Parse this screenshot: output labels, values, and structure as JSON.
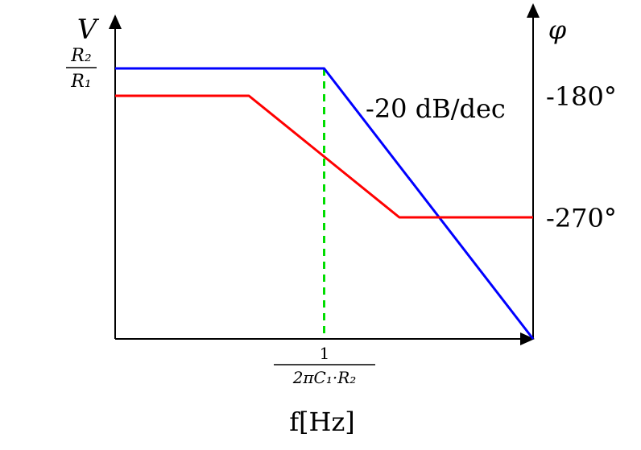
{
  "chart_data": {
    "type": "line",
    "title": "",
    "xlabel": "f[Hz]",
    "left_axis_label": "V",
    "right_axis_label": "φ",
    "x_range": [
      0,
      5
    ],
    "left_y_range": [
      0,
      10
    ],
    "right_y_range": [
      -360,
      -120
    ],
    "x_tick": {
      "x": 2.5,
      "numerator": "1",
      "denominator": "2πC₁·R₂"
    },
    "left_y_tick": {
      "y": 10,
      "numerator": "R₂",
      "denominator": "R₁"
    },
    "right_y_ticks": [
      {
        "value": -180,
        "label": "-180°"
      },
      {
        "value": -270,
        "label": "-270°"
      }
    ],
    "series": [
      {
        "axis": "left",
        "color": "#0000ff",
        "points": [
          [
            0,
            10
          ],
          [
            2.5,
            10
          ],
          [
            5,
            0
          ]
        ]
      },
      {
        "axis": "right",
        "color": "#ff0000",
        "points": [
          [
            0,
            -180
          ],
          [
            1.6,
            -180
          ],
          [
            3.4,
            -270
          ],
          [
            5,
            -270
          ]
        ]
      }
    ],
    "guide_line": {
      "x": 2.5,
      "color": "#00dd00",
      "style": "dashed"
    },
    "annotations": [
      {
        "text": "-20 dB/dec",
        "near": "blue-slope"
      }
    ],
    "grid": false,
    "legend": "none"
  }
}
